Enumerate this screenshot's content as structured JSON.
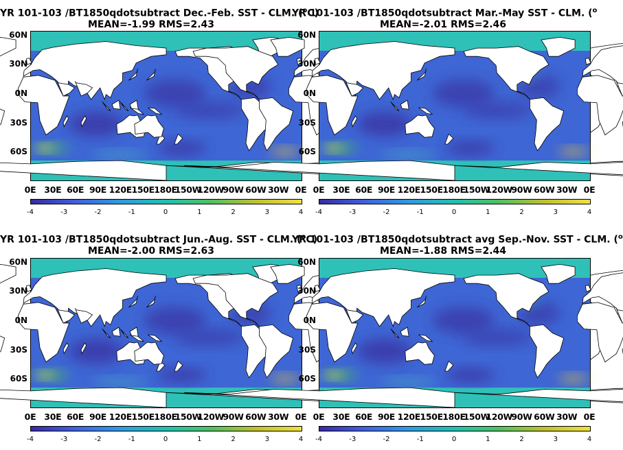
{
  "panels": [
    {
      "id": "djf",
      "title_line1": "YR 101-103 /BT1850qdotsubtract  Dec.-Feb. SST - CLM. (",
      "title_unit": "o",
      "title_tail": "C)",
      "mean_rms": "MEAN=-1.99   RMS=2.43"
    },
    {
      "id": "mam",
      "title_line1": "YR 101-103 /BT1850qdotsubtract Mar.-May SST - CLM. (",
      "title_unit": "o",
      "title_tail": "",
      "mean_rms": "MEAN=-2.01   RMS=2.46"
    },
    {
      "id": "jja",
      "title_line1": "YR 101-103 /BT1850qdotsubtract Jun.-Aug. SST - CLM. (",
      "title_unit": "o",
      "title_tail": "C)",
      "mean_rms": "MEAN=-2.00   RMS=2.63"
    },
    {
      "id": "son",
      "title_line1": "YR 101-103 /BT1850qdotsubtract avg Sep.-Nov. SST - CLM. (",
      "title_unit": "o",
      "title_tail": "",
      "mean_rms": "MEAN=-1.88   RMS=2.44"
    }
  ],
  "lat_labels": [
    "60N",
    "30N",
    "0N",
    "30S",
    "60S"
  ],
  "lon_labels": [
    "0E",
    "30E",
    "60E",
    "90E",
    "120E",
    "150E",
    "180E",
    "150W",
    "120W",
    "90W",
    "60W",
    "30W",
    "0E"
  ],
  "colorbar_ticks": [
    "-4",
    "-3",
    "-2",
    "-1",
    "0",
    "1",
    "2",
    "3",
    "4"
  ],
  "colors": {
    "ocean_base": "#2fc0b8",
    "cold": "#3a3aa8",
    "mid": "#3d6fd8",
    "warm": "#f0e040",
    "land": "#ffffff"
  }
}
